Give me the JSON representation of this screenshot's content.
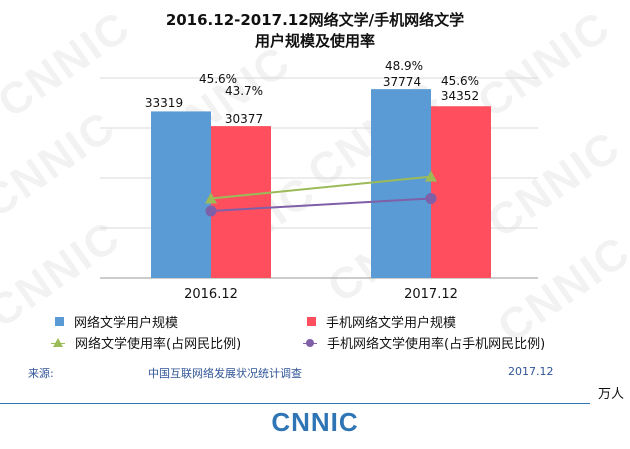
{
  "watermark": "CNNIC",
  "title_line1": "2016.12-2017.12网络文学/手机网络文学",
  "title_line2": "用户规模及使用率",
  "chart_data": {
    "type": "bar",
    "categories": [
      "2016.12",
      "2017.12"
    ],
    "ylim": [
      0,
      40000
    ],
    "grid": true,
    "series": [
      {
        "name": "网络文学用户规模",
        "type": "bar",
        "values": [
          33319,
          37774
        ],
        "labels": [
          "33319",
          "37774"
        ],
        "color": "#5b9bd5"
      },
      {
        "name": "手机网络文学用户规模",
        "type": "bar",
        "values": [
          30377,
          34352
        ],
        "labels": [
          "30377",
          "34352"
        ],
        "color": "#ff4f5e"
      },
      {
        "name": "网络文学使用率(占网民比例)",
        "type": "line",
        "values": [
          45.6,
          48.9
        ],
        "labels": [
          "45.6%",
          "48.9%"
        ],
        "color": "#9bbb59",
        "marker": "triangle"
      },
      {
        "name": "手机网络文学使用率(占手机网民比例)",
        "type": "line",
        "values": [
          43.7,
          45.6
        ],
        "labels": [
          "43.7%",
          "45.6%"
        ],
        "color": "#7f5fa8",
        "marker": "circle"
      }
    ],
    "legend_position": "bottom"
  },
  "legend": {
    "item1": "网络文学用户规模",
    "item2": "手机网络文学用户规模",
    "item3": "网络文学使用率(占网民比例)",
    "item4": "手机网络文学使用率(占手机网民比例)"
  },
  "footer": {
    "source_label": "来源:",
    "source_name": "中国互联网络发展状况统计调查",
    "date": "2017.12",
    "unit": "万人",
    "logo": "CNNIC"
  }
}
